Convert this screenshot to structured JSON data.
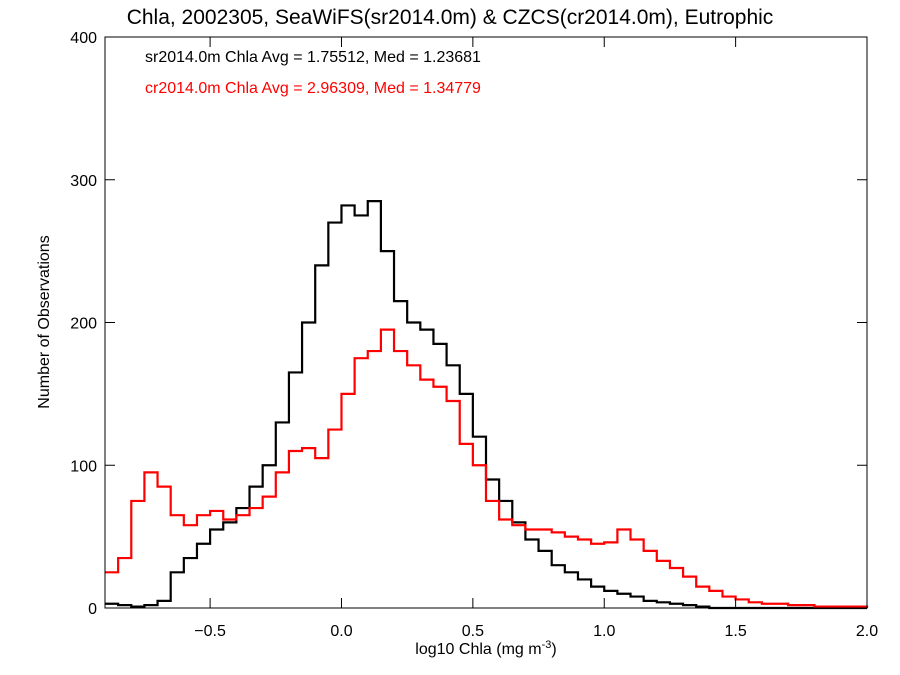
{
  "chart_data": {
    "type": "line",
    "title": "Chla, 2002305, SeaWiFS(sr2014.0m) & CZCS(cr2014.0m), Eutrophic",
    "xlabel": "log10 Chla (mg m",
    "xlabel_sup": "-3",
    "xlabel_close": ")",
    "ylabel": "Number of Observations",
    "xlim": [
      -0.9,
      2.0
    ],
    "ylim": [
      0,
      400
    ],
    "x_ticks": [
      -0.5,
      0.0,
      0.5,
      1.0,
      1.5,
      2.0
    ],
    "x_tick_labels": [
      "−0.5",
      "0.0",
      "0.5",
      "1.0",
      "1.5",
      "2.0"
    ],
    "y_ticks": [
      0,
      100,
      200,
      300,
      400
    ],
    "y_tick_labels": [
      "0",
      "100",
      "200",
      "300",
      "400"
    ],
    "grid": false,
    "legend_position": "top-left",
    "series": [
      {
        "name": "sr2014.0m Chla Avg = 1.75512, Med = 1.23681",
        "color": "#000000",
        "points": [
          [
            -0.9,
            3
          ],
          [
            -0.85,
            2
          ],
          [
            -0.8,
            1
          ],
          [
            -0.75,
            2
          ],
          [
            -0.7,
            5
          ],
          [
            -0.65,
            25
          ],
          [
            -0.6,
            35
          ],
          [
            -0.55,
            45
          ],
          [
            -0.5,
            55
          ],
          [
            -0.45,
            60
          ],
          [
            -0.4,
            70
          ],
          [
            -0.35,
            85
          ],
          [
            -0.3,
            100
          ],
          [
            -0.25,
            130
          ],
          [
            -0.2,
            165
          ],
          [
            -0.15,
            200
          ],
          [
            -0.1,
            240
          ],
          [
            -0.05,
            270
          ],
          [
            0.0,
            282
          ],
          [
            0.05,
            275
          ],
          [
            0.1,
            285
          ],
          [
            0.15,
            250
          ],
          [
            0.2,
            215
          ],
          [
            0.25,
            200
          ],
          [
            0.3,
            195
          ],
          [
            0.35,
            185
          ],
          [
            0.4,
            170
          ],
          [
            0.45,
            150
          ],
          [
            0.5,
            120
          ],
          [
            0.55,
            90
          ],
          [
            0.6,
            75
          ],
          [
            0.65,
            60
          ],
          [
            0.7,
            48
          ],
          [
            0.75,
            40
          ],
          [
            0.8,
            30
          ],
          [
            0.85,
            25
          ],
          [
            0.9,
            20
          ],
          [
            0.95,
            15
          ],
          [
            1.0,
            12
          ],
          [
            1.05,
            10
          ],
          [
            1.1,
            8
          ],
          [
            1.15,
            5
          ],
          [
            1.2,
            4
          ],
          [
            1.25,
            3
          ],
          [
            1.3,
            2
          ],
          [
            1.35,
            1
          ],
          [
            1.4,
            0
          ],
          [
            2.0,
            0
          ]
        ]
      },
      {
        "name": "cr2014.0m Chla Avg = 2.96309, Med = 1.34779",
        "color": "#ff0000",
        "points": [
          [
            -0.9,
            25
          ],
          [
            -0.85,
            35
          ],
          [
            -0.8,
            75
          ],
          [
            -0.75,
            95
          ],
          [
            -0.7,
            85
          ],
          [
            -0.65,
            65
          ],
          [
            -0.6,
            58
          ],
          [
            -0.55,
            65
          ],
          [
            -0.5,
            68
          ],
          [
            -0.45,
            62
          ],
          [
            -0.4,
            65
          ],
          [
            -0.35,
            70
          ],
          [
            -0.3,
            78
          ],
          [
            -0.25,
            95
          ],
          [
            -0.2,
            110
          ],
          [
            -0.15,
            112
          ],
          [
            -0.1,
            105
          ],
          [
            -0.05,
            125
          ],
          [
            0.0,
            150
          ],
          [
            0.05,
            175
          ],
          [
            0.1,
            180
          ],
          [
            0.15,
            195
          ],
          [
            0.2,
            180
          ],
          [
            0.25,
            170
          ],
          [
            0.3,
            160
          ],
          [
            0.35,
            155
          ],
          [
            0.4,
            145
          ],
          [
            0.45,
            115
          ],
          [
            0.5,
            100
          ],
          [
            0.55,
            75
          ],
          [
            0.6,
            62
          ],
          [
            0.65,
            58
          ],
          [
            0.7,
            55
          ],
          [
            0.75,
            55
          ],
          [
            0.8,
            53
          ],
          [
            0.85,
            50
          ],
          [
            0.9,
            48
          ],
          [
            0.95,
            45
          ],
          [
            1.0,
            46
          ],
          [
            1.05,
            55
          ],
          [
            1.1,
            48
          ],
          [
            1.15,
            40
          ],
          [
            1.2,
            33
          ],
          [
            1.25,
            28
          ],
          [
            1.3,
            22
          ],
          [
            1.35,
            15
          ],
          [
            1.4,
            12
          ],
          [
            1.45,
            8
          ],
          [
            1.5,
            6
          ],
          [
            1.55,
            4
          ],
          [
            1.6,
            3
          ],
          [
            1.7,
            2
          ],
          [
            1.8,
            1
          ],
          [
            1.9,
            1
          ],
          [
            2.0,
            0
          ]
        ]
      }
    ]
  }
}
